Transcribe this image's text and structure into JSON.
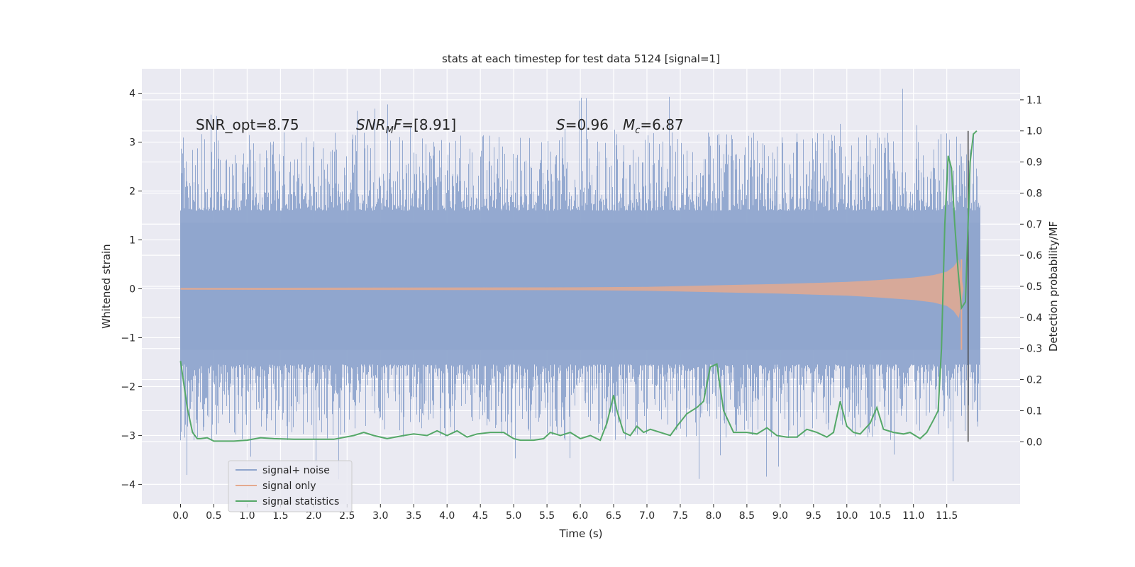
{
  "chart_data": {
    "type": "line",
    "title": "stats at each timestep for test data 5124 [signal=1]",
    "xlabel": "Time (s)",
    "ylabel_left": "Whitened strain",
    "ylabel_right": "Detection probability/MF",
    "xlim": [
      -0.58,
      12.6
    ],
    "ylim_left": [
      -4.4,
      4.5
    ],
    "ylim_right": [
      -0.2,
      1.2
    ],
    "x_ticks": [
      "0.0",
      "0.5",
      "1.0",
      "1.5",
      "2.0",
      "2.5",
      "3.0",
      "3.5",
      "4.0",
      "4.5",
      "5.0",
      "5.5",
      "6.0",
      "6.5",
      "7.0",
      "7.5",
      "8.0",
      "8.5",
      "9.0",
      "9.5",
      "10.0",
      "10.5",
      "11.0",
      "11.5"
    ],
    "y_ticks_left": [
      "4",
      "3",
      "2",
      "1",
      "0",
      "−1",
      "−2",
      "−3",
      "−4"
    ],
    "y_ticks_right": [
      "1.1",
      "1.0",
      "0.9",
      "0.8",
      "0.7",
      "0.6",
      "0.5",
      "0.4",
      "0.3",
      "0.2",
      "0.1",
      "0.0"
    ],
    "annotations": {
      "snr_opt": "SNR_opt=8.75",
      "snr_mf_prefix": "SNR",
      "snr_mf_sub": "M",
      "snr_mf_mid": "F",
      "snr_mf_value": "=[8.91]",
      "s_symbol": "S",
      "s_value": "=0.96",
      "mc_symbol": "M",
      "mc_sub": "c",
      "mc_value": "=6.87"
    },
    "vertical_marker_time": 11.82,
    "noise_band": {
      "x_range": [
        0.0,
        12.0
      ],
      "core_low": -1.25,
      "core_high": 1.35,
      "peak_max": 4.1,
      "peak_min": -3.95
    },
    "signal_envelope": {
      "x": [
        0.0,
        6.0,
        7.0,
        8.0,
        9.0,
        10.0,
        10.5,
        11.0,
        11.3,
        11.5,
        11.6,
        11.68,
        11.75,
        11.82,
        12.0
      ],
      "amplitude": [
        0.02,
        0.03,
        0.04,
        0.07,
        0.1,
        0.14,
        0.18,
        0.23,
        0.28,
        0.35,
        0.45,
        0.6,
        0.0,
        0.0,
        0.0
      ],
      "dip_low": -1.25
    },
    "signal_statistics": {
      "x": [
        0.0,
        0.1,
        0.18,
        0.25,
        0.3,
        0.4,
        0.5,
        0.6,
        0.8,
        1.0,
        1.2,
        1.4,
        1.7,
        2.0,
        2.3,
        2.6,
        2.75,
        2.9,
        3.1,
        3.35,
        3.5,
        3.7,
        3.85,
        4.0,
        4.15,
        4.3,
        4.45,
        4.65,
        4.85,
        5.0,
        5.1,
        5.3,
        5.45,
        5.55,
        5.7,
        5.85,
        6.0,
        6.15,
        6.3,
        6.4,
        6.5,
        6.55,
        6.65,
        6.75,
        6.85,
        6.95,
        7.05,
        7.2,
        7.35,
        7.45,
        7.6,
        7.75,
        7.85,
        7.95,
        8.05,
        8.15,
        8.3,
        8.5,
        8.65,
        8.8,
        8.95,
        9.1,
        9.25,
        9.4,
        9.55,
        9.7,
        9.8,
        9.9,
        10.0,
        10.1,
        10.2,
        10.35,
        10.45,
        10.55,
        10.7,
        10.85,
        10.95,
        11.1,
        11.2,
        11.3,
        11.37,
        11.42,
        11.47,
        11.52,
        11.57,
        11.62,
        11.67,
        11.72,
        11.78,
        11.85,
        11.9,
        11.95
      ],
      "y": [
        0.26,
        0.11,
        0.03,
        0.01,
        0.01,
        0.013,
        0.002,
        0.002,
        0.002,
        0.005,
        0.013,
        0.01,
        0.008,
        0.008,
        0.008,
        0.02,
        0.03,
        0.02,
        0.01,
        0.02,
        0.025,
        0.02,
        0.035,
        0.02,
        0.035,
        0.015,
        0.025,
        0.03,
        0.03,
        0.01,
        0.005,
        0.005,
        0.01,
        0.03,
        0.02,
        0.03,
        0.01,
        0.02,
        0.005,
        0.06,
        0.15,
        0.1,
        0.03,
        0.02,
        0.05,
        0.03,
        0.04,
        0.03,
        0.02,
        0.05,
        0.09,
        0.11,
        0.13,
        0.24,
        0.25,
        0.1,
        0.03,
        0.03,
        0.025,
        0.045,
        0.02,
        0.015,
        0.015,
        0.04,
        0.03,
        0.015,
        0.03,
        0.13,
        0.05,
        0.03,
        0.025,
        0.06,
        0.11,
        0.04,
        0.03,
        0.025,
        0.03,
        0.01,
        0.03,
        0.07,
        0.1,
        0.3,
        0.7,
        0.92,
        0.88,
        0.7,
        0.55,
        0.43,
        0.45,
        0.9,
        0.99,
        1.0
      ]
    },
    "legend": [
      {
        "label": "signal+ noise",
        "color": "#8fa5cd"
      },
      {
        "label": "signal only",
        "color": "#e4a98f"
      },
      {
        "label": "signal statistics",
        "color": "#55a868"
      }
    ],
    "legend_position": "lower-left",
    "colors": {
      "background": "#eaeaf2",
      "grid": "#ffffff",
      "noise": "#8fa5cd",
      "signal": "#e4a98f",
      "stats": "#55a868",
      "marker": "#444444"
    }
  }
}
